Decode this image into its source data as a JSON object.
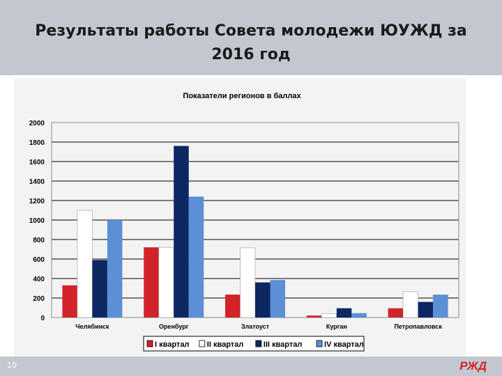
{
  "slide": {
    "title": "Результаты работы Совета молодежи ЮУЖД за 2016 год",
    "page_number": "10",
    "logo_text": "РЖД"
  },
  "colors": {
    "series": [
      "#d2232a",
      "#ffffff",
      "#0d2763",
      "#5b8fd6"
    ],
    "grid": "#000000",
    "panel": "#f3f3f3"
  },
  "chart_data": {
    "type": "bar",
    "title": "Показатели регионов в баллах",
    "categories": [
      "Челябинск",
      "Оренбург",
      "Златоуст",
      "Курган",
      "Петропавловск"
    ],
    "series": [
      {
        "name": "I квартал",
        "values": [
          330,
          720,
          235,
          20,
          95
        ]
      },
      {
        "name": "II квартал",
        "values": [
          1100,
          720,
          715,
          40,
          265
        ]
      },
      {
        "name": "III квартал",
        "values": [
          590,
          1760,
          360,
          95,
          160
        ]
      },
      {
        "name": "IV квартал",
        "values": [
          1000,
          1240,
          385,
          45,
          235
        ]
      }
    ],
    "ylim": [
      0,
      2000
    ],
    "yticks": [
      0,
      200,
      400,
      600,
      800,
      1000,
      1200,
      1400,
      1600,
      1800,
      2000
    ],
    "legend_position": "bottom",
    "xlabel": "",
    "ylabel": ""
  }
}
